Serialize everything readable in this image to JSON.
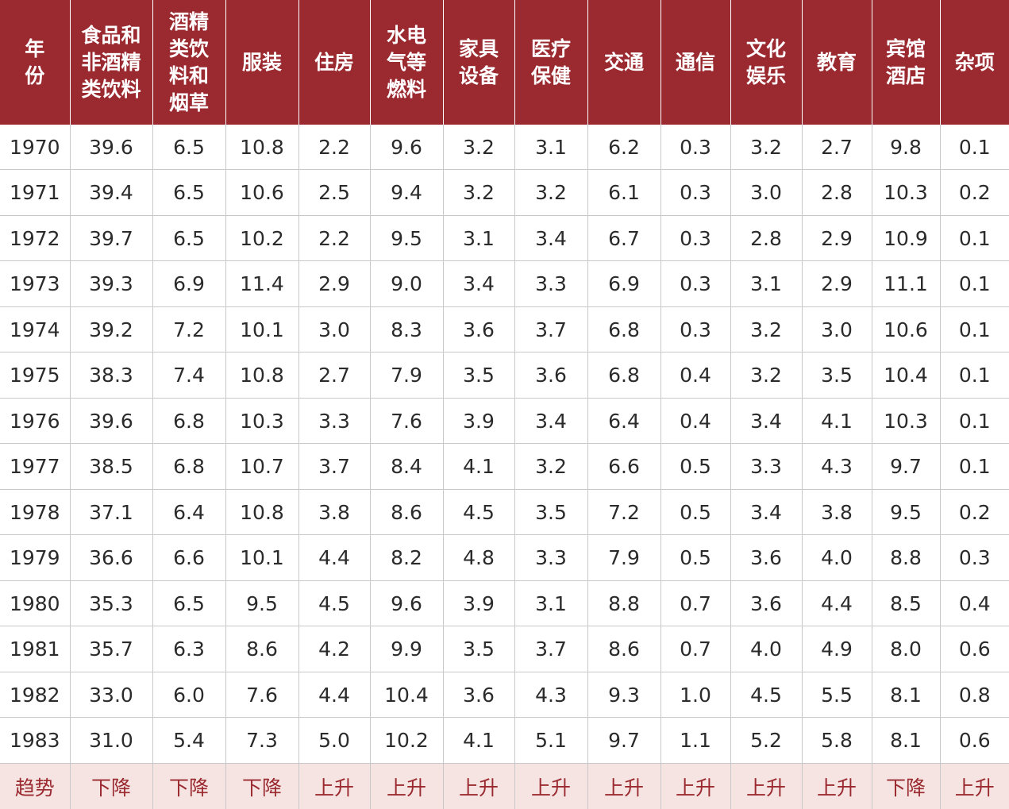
{
  "table": {
    "headers": [
      "年\n份",
      "食品和\n非酒精\n类饮料",
      "酒精\n类饮\n料和\n烟草",
      "服装",
      "住房",
      "水电\n气等\n燃料",
      "家具\n设备",
      "医疗\n保健",
      "交通",
      "通信",
      "文化\n娱乐",
      "教育",
      "宾馆\n酒店",
      "杂项"
    ],
    "rows": [
      [
        "1970",
        "39.6",
        "6.5",
        "10.8",
        "2.2",
        "9.6",
        "3.2",
        "3.1",
        "6.2",
        "0.3",
        "3.2",
        "2.7",
        "9.8",
        "0.1"
      ],
      [
        "1971",
        "39.4",
        "6.5",
        "10.6",
        "2.5",
        "9.4",
        "3.2",
        "3.2",
        "6.1",
        "0.3",
        "3.0",
        "2.8",
        "10.3",
        "0.2"
      ],
      [
        "1972",
        "39.7",
        "6.5",
        "10.2",
        "2.2",
        "9.5",
        "3.1",
        "3.4",
        "6.7",
        "0.3",
        "2.8",
        "2.9",
        "10.9",
        "0.1"
      ],
      [
        "1973",
        "39.3",
        "6.9",
        "11.4",
        "2.9",
        "9.0",
        "3.4",
        "3.3",
        "6.9",
        "0.3",
        "3.1",
        "2.9",
        "11.1",
        "0.1"
      ],
      [
        "1974",
        "39.2",
        "7.2",
        "10.1",
        "3.0",
        "8.3",
        "3.6",
        "3.7",
        "6.8",
        "0.3",
        "3.2",
        "3.0",
        "10.6",
        "0.1"
      ],
      [
        "1975",
        "38.3",
        "7.4",
        "10.8",
        "2.7",
        "7.9",
        "3.5",
        "3.6",
        "6.8",
        "0.4",
        "3.2",
        "3.5",
        "10.4",
        "0.1"
      ],
      [
        "1976",
        "39.6",
        "6.8",
        "10.3",
        "3.3",
        "7.6",
        "3.9",
        "3.4",
        "6.4",
        "0.4",
        "3.4",
        "4.1",
        "10.3",
        "0.1"
      ],
      [
        "1977",
        "38.5",
        "6.8",
        "10.7",
        "3.7",
        "8.4",
        "4.1",
        "3.2",
        "6.6",
        "0.5",
        "3.3",
        "4.3",
        "9.7",
        "0.1"
      ],
      [
        "1978",
        "37.1",
        "6.4",
        "10.8",
        "3.8",
        "8.6",
        "4.5",
        "3.5",
        "7.2",
        "0.5",
        "3.4",
        "3.8",
        "9.5",
        "0.2"
      ],
      [
        "1979",
        "36.6",
        "6.6",
        "10.1",
        "4.4",
        "8.2",
        "4.8",
        "3.3",
        "7.9",
        "0.5",
        "3.6",
        "4.0",
        "8.8",
        "0.3"
      ],
      [
        "1980",
        "35.3",
        "6.5",
        "9.5",
        "4.5",
        "9.6",
        "3.9",
        "3.1",
        "8.8",
        "0.7",
        "3.6",
        "4.4",
        "8.5",
        "0.4"
      ],
      [
        "1981",
        "35.7",
        "6.3",
        "8.6",
        "4.2",
        "9.9",
        "3.5",
        "3.7",
        "8.6",
        "0.7",
        "4.0",
        "4.9",
        "8.0",
        "0.6"
      ],
      [
        "1982",
        "33.0",
        "6.0",
        "7.6",
        "4.4",
        "10.4",
        "3.6",
        "4.3",
        "9.3",
        "1.0",
        "4.5",
        "5.5",
        "8.1",
        "0.8"
      ],
      [
        "1983",
        "31.0",
        "5.4",
        "7.3",
        "5.0",
        "10.2",
        "4.1",
        "5.1",
        "9.7",
        "1.1",
        "5.2",
        "5.8",
        "8.1",
        "0.6"
      ]
    ],
    "trend": [
      "趋势",
      "下降",
      "下降",
      "下降",
      "上升",
      "上升",
      "上升",
      "上升",
      "上升",
      "上升",
      "上升",
      "上升",
      "下降",
      "上升"
    ]
  },
  "colors": {
    "header_bg": "#9b2a30",
    "header_text": "#ffffff",
    "trend_bg": "#f5e4e2",
    "trend_text": "#9b2a30"
  }
}
